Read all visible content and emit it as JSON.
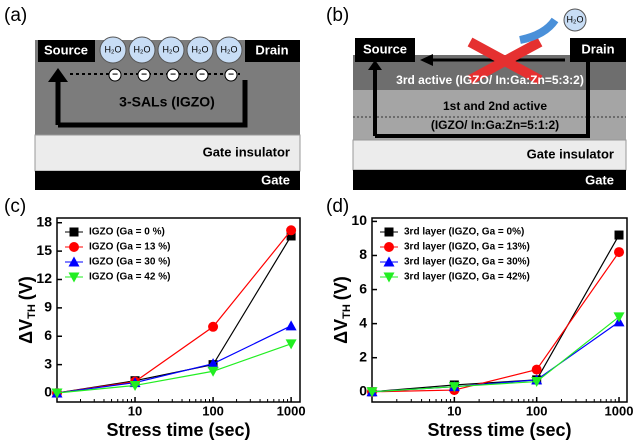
{
  "diagrams": {
    "a": {
      "label": "(a)",
      "source": "Source",
      "drain": "Drain",
      "molecules": [
        "H₂O",
        "H₂O",
        "H₂O",
        "H₂O",
        "H₂O"
      ],
      "charges": [
        "−",
        "−",
        "−",
        "−",
        "−"
      ],
      "channel": "3-SALs (IGZO)",
      "insulator": "Gate insulator",
      "gate": "Gate"
    },
    "b": {
      "label": "(b)",
      "source": "Source",
      "drain": "Drain",
      "molecule": "H₂O",
      "top_layer": "3rd active (IGZO/ In:Ga:Zn=5:3:2)",
      "lower_layer": "1st and 2nd active",
      "lower_layer_comp": "(IGZO/ In:Ga:Zn=5:1:2)",
      "insulator": "Gate insulator",
      "gate": "Gate"
    }
  },
  "chart_data": [
    {
      "type": "line",
      "label": "(c)",
      "x_label": "Stress time (sec)",
      "y_label": "ΔV",
      "y_label_sub": "TH",
      "y_label_unit": "(V)",
      "x": [
        1,
        10,
        100,
        1000
      ],
      "xlim": [
        1,
        1300
      ],
      "xticks": [
        10,
        100,
        1000
      ],
      "xscale": "log",
      "ylim": [
        -0.95,
        18.5
      ],
      "yticks": [
        0,
        3,
        6,
        9,
        12,
        15,
        18
      ],
      "legend": "upper left",
      "series": [
        {
          "name": "IGZO (Ga = 0 %)",
          "color": "#000000",
          "marker": "square",
          "values": [
            0,
            1.3,
            3.0,
            16.6
          ]
        },
        {
          "name": "IGZO (Ga = 13 %)",
          "color": "#ff0000",
          "marker": "circle",
          "values": [
            0,
            1.2,
            7.0,
            17.2
          ]
        },
        {
          "name": "IGZO (Ga = 30 %)",
          "color": "#0000ff",
          "marker": "triangle-up",
          "values": [
            0,
            1.1,
            3.1,
            7.1
          ]
        },
        {
          "name": "IGZO (Ga = 42 %)",
          "color": "#22ee22",
          "marker": "triangle-down",
          "values": [
            0,
            0.8,
            2.3,
            5.2
          ]
        }
      ]
    },
    {
      "type": "line",
      "label": "(d)",
      "x_label": "Stress time (sec)",
      "y_label": "ΔV",
      "y_label_sub": "TH",
      "y_label_unit": "(V)",
      "x": [
        1,
        10,
        100,
        1000
      ],
      "xlim": [
        1,
        1250
      ],
      "xticks": [
        10,
        100,
        1000
      ],
      "xscale": "log",
      "ylim": [
        -0.6,
        10.2
      ],
      "yticks": [
        0,
        2,
        4,
        6,
        8,
        10
      ],
      "legend": "upper left",
      "series": [
        {
          "name": "3rd layer (IGZO, Ga = 0%)",
          "color": "#000000",
          "marker": "square",
          "values": [
            0,
            0.4,
            0.7,
            9.2
          ]
        },
        {
          "name": "3rd layer (IGZO, Ga = 13%)",
          "color": "#ff0000",
          "marker": "circle",
          "values": [
            0,
            0.1,
            1.3,
            8.2
          ]
        },
        {
          "name": "3rd layer (IGZO, Ga = 30%)",
          "color": "#0000ff",
          "marker": "triangle-up",
          "values": [
            0,
            0.3,
            0.7,
            4.1
          ]
        },
        {
          "name": "3rd layer (IGZO, Ga = 42%)",
          "color": "#22ee22",
          "marker": "triangle-down",
          "values": [
            0,
            0.3,
            0.6,
            4.4
          ]
        }
      ]
    }
  ]
}
